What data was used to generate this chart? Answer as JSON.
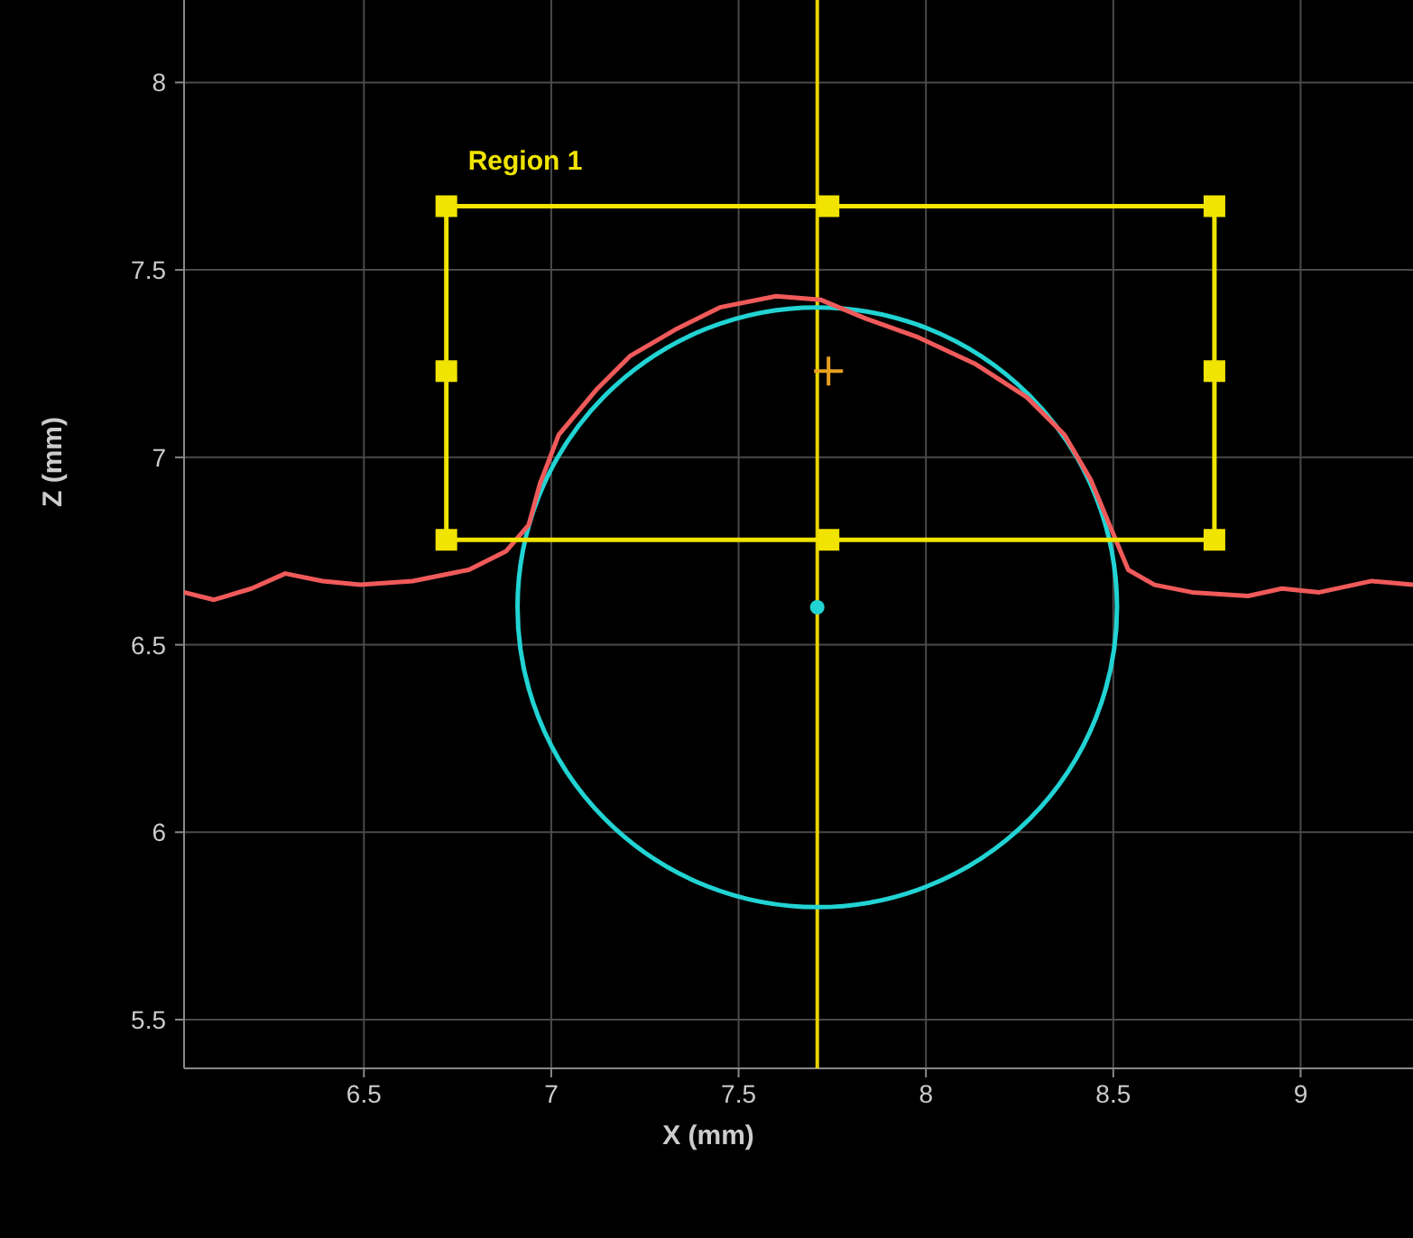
{
  "chart_data": {
    "type": "line",
    "xlabel": "X (mm)",
    "ylabel": "Z (mm)",
    "xlim": [
      6.02,
      9.3
    ],
    "ylim": [
      5.37,
      8.22
    ],
    "xticks": [
      6.5,
      7,
      7.5,
      8,
      8.5,
      9
    ],
    "yticks": [
      5.5,
      6,
      6.5,
      7,
      7.5,
      8
    ],
    "grid": true,
    "annotations": [
      {
        "text": "Region 1",
        "x": 6.72,
        "y": 7.67
      }
    ],
    "ref_lines": [
      {
        "axis": "x",
        "value": 7.71,
        "color": "#e6d200"
      }
    ],
    "series": [
      {
        "type": "line",
        "color": "#f05a5a",
        "marker": "none",
        "x": [
          6.02,
          6.1,
          6.2,
          6.29,
          6.39,
          6.49,
          6.63,
          6.78,
          6.88,
          6.94,
          6.97,
          7.02,
          7.12,
          7.21,
          7.33,
          7.45,
          7.6,
          7.72,
          7.84,
          7.98,
          8.13,
          8.27,
          8.37,
          8.44,
          8.49,
          8.54,
          8.61,
          8.71,
          8.86,
          8.95,
          9.05,
          9.19,
          9.3
        ],
        "values": [
          6.64,
          6.62,
          6.65,
          6.69,
          6.67,
          6.66,
          6.67,
          6.7,
          6.75,
          6.82,
          6.93,
          7.06,
          7.18,
          7.27,
          7.34,
          7.4,
          7.43,
          7.42,
          7.37,
          7.32,
          7.25,
          7.16,
          7.06,
          6.94,
          6.82,
          6.7,
          6.66,
          6.64,
          6.63,
          6.65,
          6.64,
          6.67,
          6.66
        ]
      },
      {
        "type": "line",
        "color": "#f0e400",
        "marker": "none",
        "x": [
          6.72,
          8.77
        ],
        "values": [
          7.67,
          7.67
        ]
      },
      {
        "type": "line",
        "color": "#f0e400",
        "marker": "none",
        "x": [
          6.72,
          8.77
        ],
        "values": [
          6.78,
          6.78
        ]
      },
      {
        "type": "line",
        "color": "#f0e400",
        "marker": "none",
        "x": [
          6.72,
          6.72
        ],
        "values": [
          7.67,
          6.78
        ]
      },
      {
        "type": "line",
        "color": "#f0e400",
        "marker": "none",
        "x": [
          8.77,
          8.77
        ],
        "values": [
          7.67,
          6.78
        ]
      },
      {
        "type": "scatter",
        "color": "#f0e400",
        "marker": "square",
        "x": [
          6.72,
          7.74,
          8.77,
          8.77,
          8.77,
          7.74,
          6.72,
          6.72
        ],
        "values": [
          7.67,
          7.67,
          7.67,
          7.23,
          6.78,
          6.78,
          6.78,
          7.23
        ]
      },
      {
        "type": "scatter",
        "color": "#22d3d3",
        "marker": "circle",
        "x": [
          7.71
        ],
        "values": [
          6.6
        ]
      },
      {
        "type": "scatter",
        "color": "#e8a020",
        "marker": "cross",
        "x": [
          7.74
        ],
        "values": [
          7.23
        ]
      }
    ]
  }
}
